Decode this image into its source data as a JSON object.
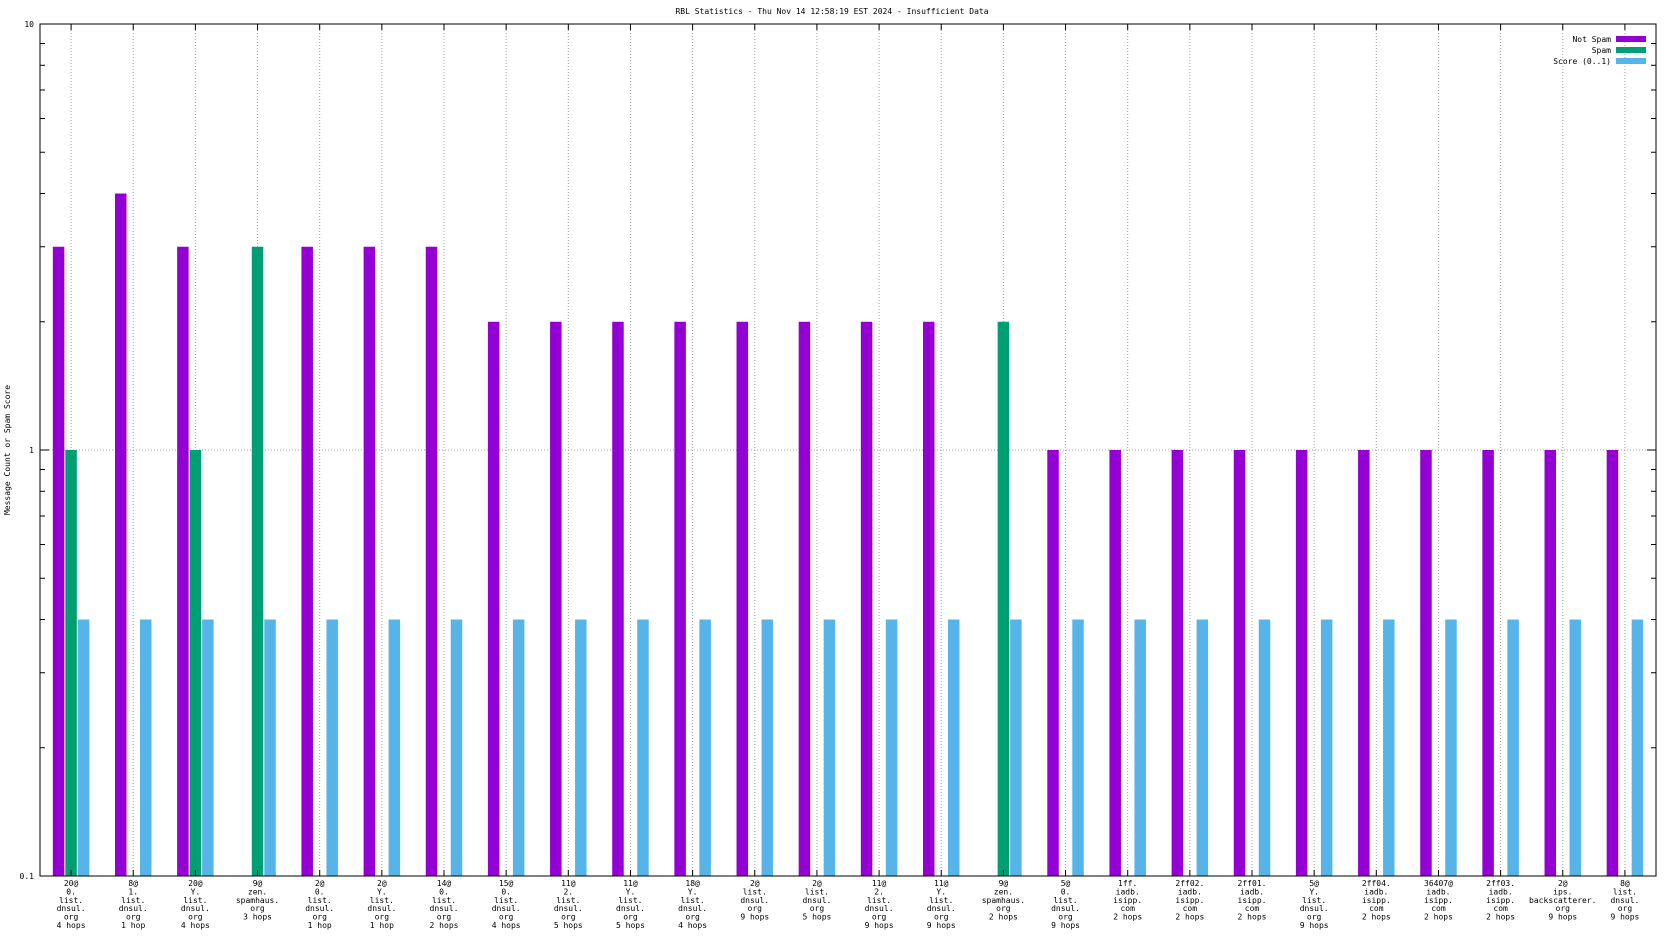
{
  "chart_data": {
    "type": "bar",
    "title": "RBL Statistics - Thu Nov 14 12:58:19 EST 2024 - Insufficient Data",
    "xlabel": "",
    "ylabel": "Message Count or Spam Score",
    "yscale": "log",
    "ylim": [
      0.1,
      10
    ],
    "yticks": [
      "0.1",
      "1",
      "10"
    ],
    "grid": true,
    "legend_position": "top-right",
    "categories": [
      [
        "20@",
        "0.",
        "list.",
        "dnsul.",
        "org",
        "4 hops"
      ],
      [
        "8@",
        "1.",
        "list.",
        "dnsul.",
        "org",
        "1 hop"
      ],
      [
        "20@",
        "Y.",
        "list.",
        "dnsul.",
        "org",
        "4 hops"
      ],
      [
        "9@",
        "zen.",
        "spamhaus.",
        "org",
        "3 hops"
      ],
      [
        "2@",
        "0.",
        "list.",
        "dnsul.",
        "org",
        "1 hop"
      ],
      [
        "2@",
        "Y.",
        "list.",
        "dnsul.",
        "org",
        "1 hop"
      ],
      [
        "14@",
        "0.",
        "list.",
        "dnsul.",
        "org",
        "2 hops"
      ],
      [
        "15@",
        "0.",
        "list.",
        "dnsul.",
        "org",
        "4 hops"
      ],
      [
        "11@",
        "2.",
        "list.",
        "dnsul.",
        "org",
        "5 hops"
      ],
      [
        "11@",
        "Y.",
        "list.",
        "dnsul.",
        "org",
        "5 hops"
      ],
      [
        "18@",
        "Y.",
        "list.",
        "dnsul.",
        "org",
        "4 hops"
      ],
      [
        "2@",
        "list.",
        "dnsul.",
        "org",
        "9 hops"
      ],
      [
        "2@",
        "list.",
        "dnsul.",
        "org",
        "5 hops"
      ],
      [
        "11@",
        "2.",
        "list.",
        "dnsul.",
        "org",
        "9 hops"
      ],
      [
        "11@",
        "Y.",
        "list.",
        "dnsul.",
        "org",
        "9 hops"
      ],
      [
        "9@",
        "zen.",
        "spamhaus.",
        "org",
        "2 hops"
      ],
      [
        "5@",
        "0.",
        "list.",
        "dnsul.",
        "org",
        "9 hops"
      ],
      [
        "1ff.",
        "iadb.",
        "isipp.",
        "com",
        "2 hops"
      ],
      [
        "2ff02.",
        "iadb.",
        "isipp.",
        "com",
        "2 hops"
      ],
      [
        "2ff01.",
        "iadb.",
        "isipp.",
        "com",
        "2 hops"
      ],
      [
        "5@",
        "Y.",
        "list.",
        "dnsul.",
        "org",
        "9 hops"
      ],
      [
        "2ff04.",
        "iadb.",
        "isipp.",
        "com",
        "2 hops"
      ],
      [
        "36407@",
        "iadb.",
        "isipp.",
        "com",
        "2 hops"
      ],
      [
        "2ff03.",
        "iadb.",
        "isipp.",
        "com",
        "2 hops"
      ],
      [
        "2@",
        "ips.",
        "backscatterer.",
        "org",
        "9 hops"
      ],
      [
        "8@",
        "list.",
        "dnsul.",
        "org",
        "9 hops"
      ]
    ],
    "series": [
      {
        "name": "Not Spam",
        "color": "#9400d3",
        "values": [
          3,
          4,
          3,
          null,
          3,
          3,
          3,
          2,
          2,
          2,
          2,
          2,
          2,
          2,
          2,
          null,
          1,
          1,
          1,
          1,
          1,
          1,
          1,
          1,
          1,
          1
        ]
      },
      {
        "name": "Spam",
        "color": "#009e73",
        "values": [
          1,
          null,
          1,
          3,
          null,
          null,
          null,
          null,
          null,
          null,
          null,
          null,
          null,
          null,
          null,
          2,
          null,
          null,
          null,
          null,
          null,
          null,
          null,
          null,
          null,
          null
        ]
      },
      {
        "name": "Score (0..1)",
        "color": "#56b4e9",
        "values": [
          0.4,
          0.4,
          0.4,
          0.4,
          0.4,
          0.4,
          0.4,
          0.4,
          0.4,
          0.4,
          0.4,
          0.4,
          0.4,
          0.4,
          0.4,
          0.4,
          0.4,
          0.4,
          0.4,
          0.4,
          0.4,
          0.4,
          0.4,
          0.4,
          0.4,
          0.4
        ]
      }
    ]
  }
}
